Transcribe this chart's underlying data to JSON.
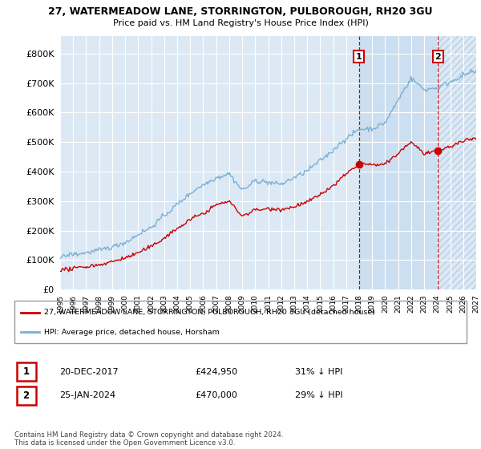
{
  "title1": "27, WATERMEADOW LANE, STORRINGTON, PULBOROUGH, RH20 3GU",
  "title2": "Price paid vs. HM Land Registry's House Price Index (HPI)",
  "legend_line1": "27, WATERMEADOW LANE, STORRINGTON, PULBOROUGH, RH20 3GU (detached house)",
  "legend_line2": "HPI: Average price, detached house, Horsham",
  "sale1_date": "20-DEC-2017",
  "sale1_price": "£424,950",
  "sale1_hpi": "31% ↓ HPI",
  "sale2_date": "25-JAN-2024",
  "sale2_price": "£470,000",
  "sale2_hpi": "29% ↓ HPI",
  "footnote": "Contains HM Land Registry data © Crown copyright and database right 2024.\nThis data is licensed under the Open Government Licence v3.0.",
  "plot_bg": "#dce9f5",
  "highlight_bg": "#ccdff0",
  "grid_color": "#ffffff",
  "hpi_color": "#7bafd4",
  "price_color": "#cc0000",
  "dashed_color": "#cc0000",
  "ylim": [
    0,
    860000
  ],
  "yticks": [
    0,
    100000,
    200000,
    300000,
    400000,
    500000,
    600000,
    700000,
    800000
  ],
  "ytick_labels": [
    "£0",
    "£100K",
    "£200K",
    "£300K",
    "£400K",
    "£500K",
    "£600K",
    "£700K",
    "£800K"
  ],
  "xmin": 1995,
  "xmax": 2027,
  "sale1_year": 2017.97,
  "sale2_year": 2024.07,
  "sale1_price_val": 424950,
  "sale2_price_val": 470000
}
